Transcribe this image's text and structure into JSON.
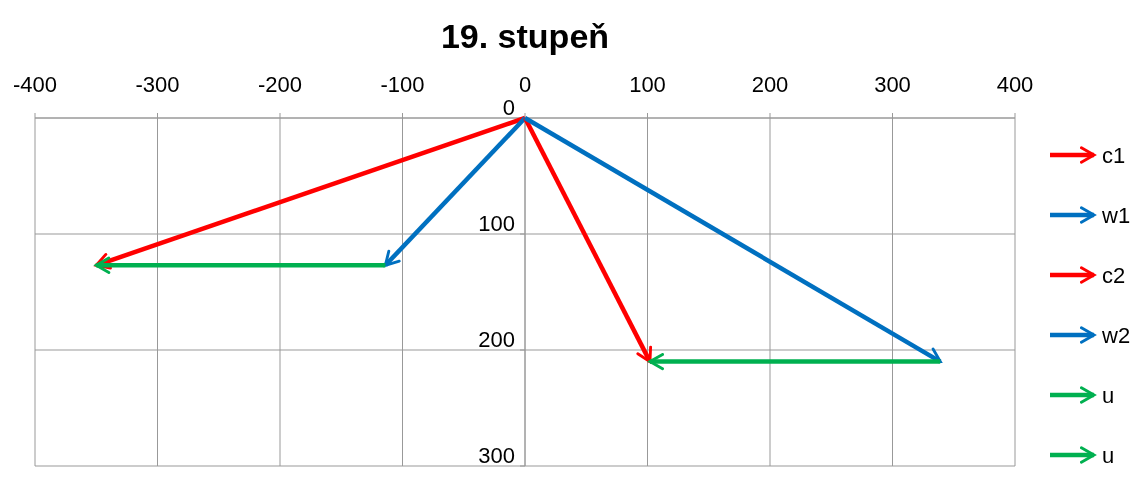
{
  "chart_data": {
    "type": "line",
    "title": "19. stupeň",
    "xlim": [
      -400,
      400
    ],
    "xticks": [
      -400,
      -300,
      -200,
      -100,
      0,
      100,
      200,
      300,
      400
    ],
    "ylim": [
      300,
      0
    ],
    "yticks": [
      0,
      100,
      200,
      300
    ],
    "grid": true,
    "legend": "right",
    "line_style": "solid",
    "series": [
      {
        "name": "c1",
        "color": "#ff0000",
        "x": [
          0,
          -350
        ],
        "values": [
          0,
          127
        ]
      },
      {
        "name": "w1",
        "color": "#0070c0",
        "x": [
          0,
          -114
        ],
        "values": [
          0,
          127
        ]
      },
      {
        "name": "c2",
        "color": "#ff0000",
        "x": [
          0,
          102
        ],
        "values": [
          0,
          210
        ]
      },
      {
        "name": "w2",
        "color": "#0070c0",
        "x": [
          0,
          339
        ],
        "values": [
          0,
          210
        ]
      },
      {
        "name": "u",
        "color": "#00b050",
        "x": [
          -114,
          -350
        ],
        "values": [
          127,
          127
        ]
      },
      {
        "name": "u",
        "color": "#00b050",
        "x": [
          339,
          102
        ],
        "values": [
          210,
          210
        ]
      }
    ]
  }
}
